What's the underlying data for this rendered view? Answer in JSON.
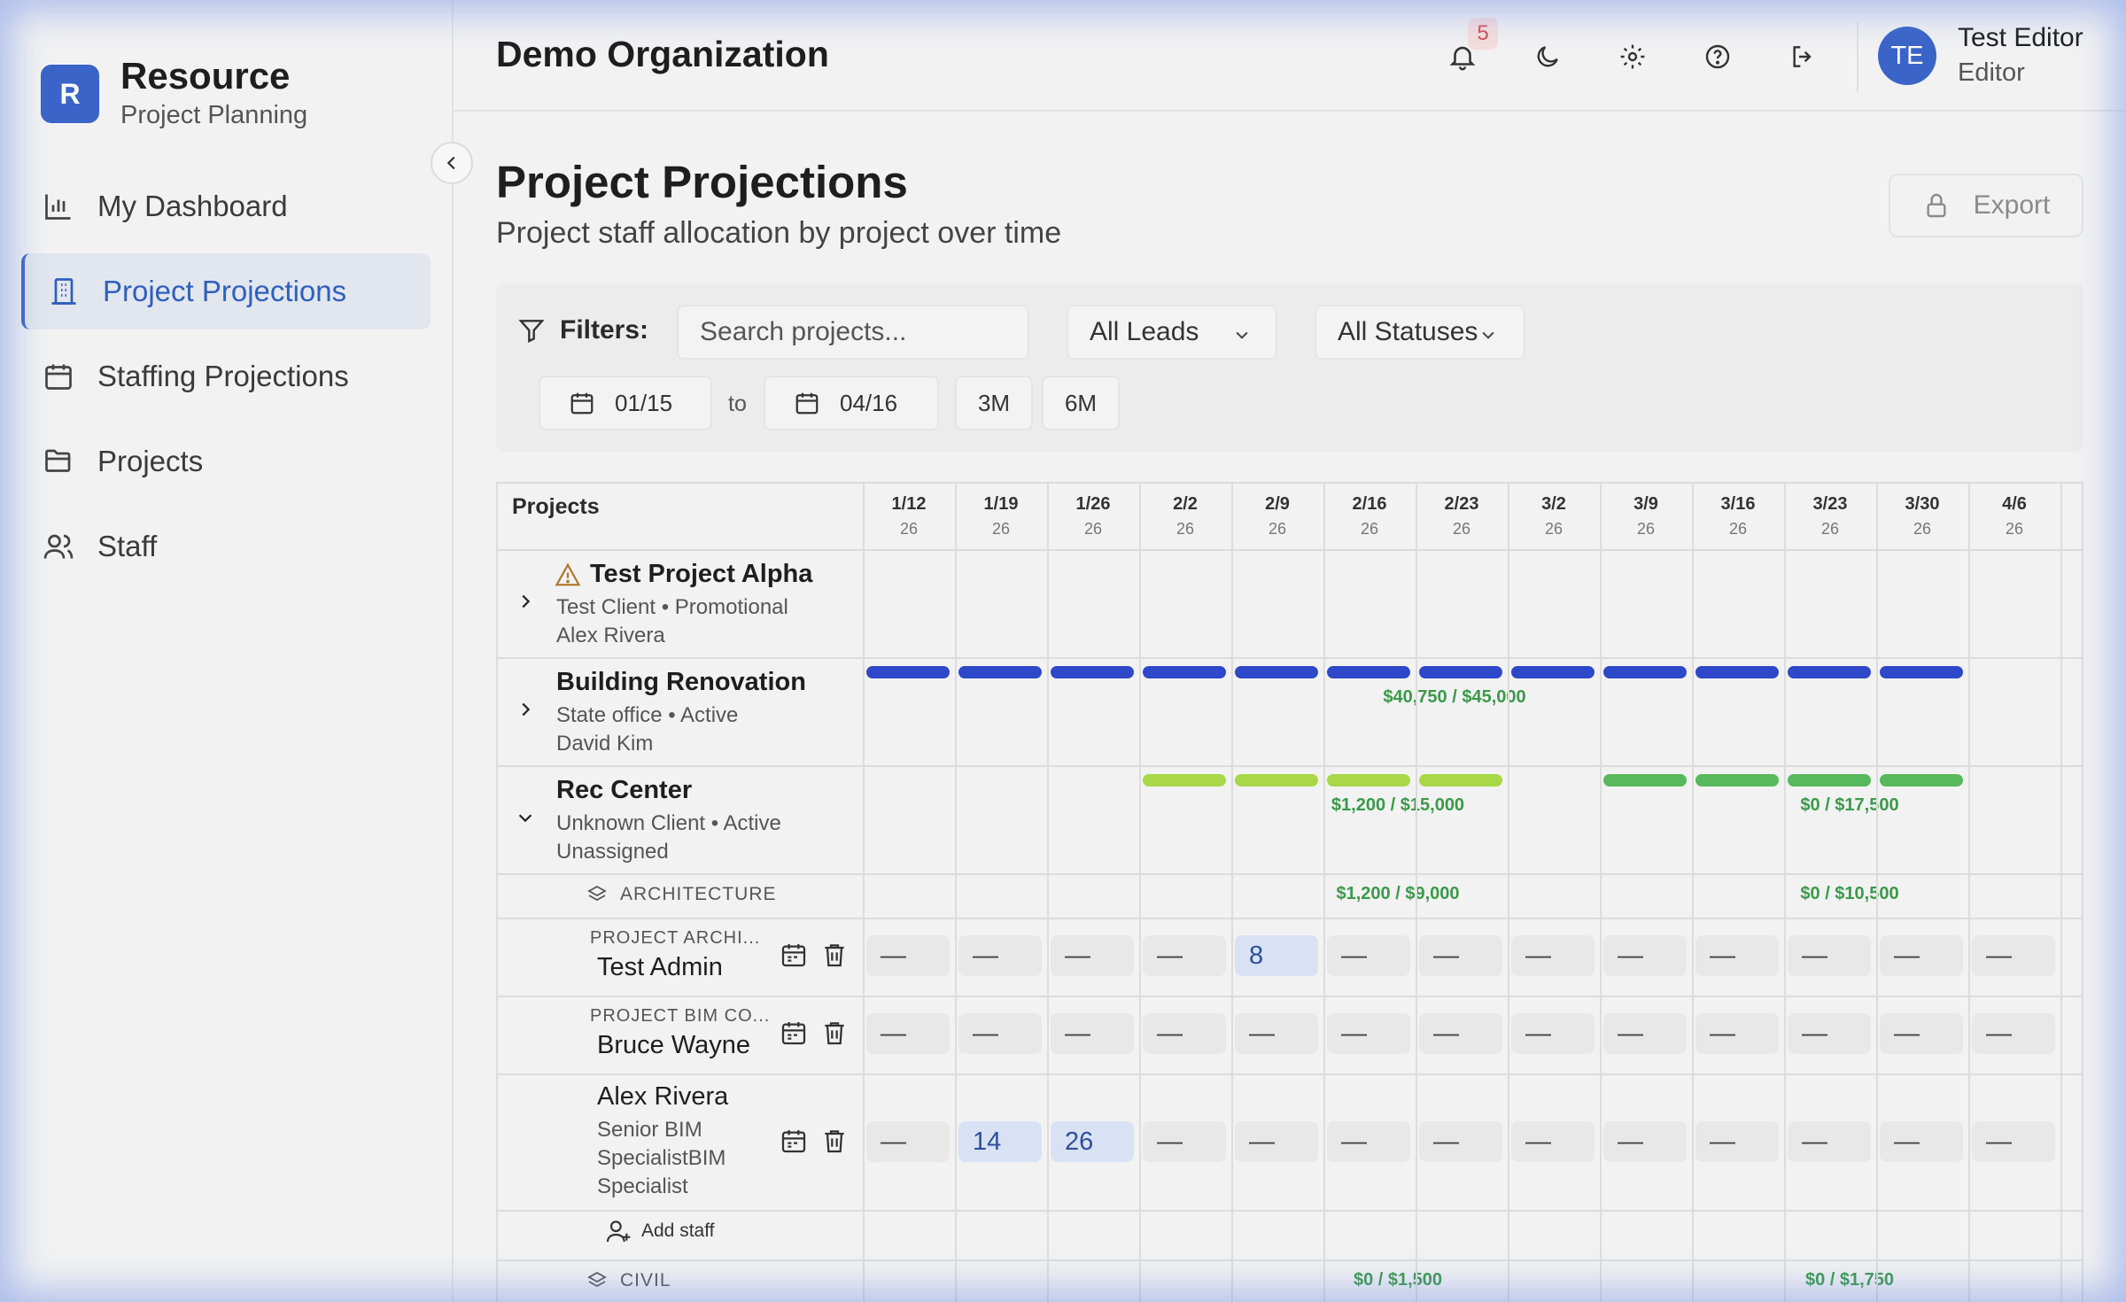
{
  "brand": {
    "logo_letter": "R",
    "title": "Resource",
    "subtitle": "Project Planning"
  },
  "nav": [
    {
      "label": "My Dashboard",
      "icon": "bar-chart-icon",
      "active": false
    },
    {
      "label": "Project Projections",
      "icon": "building-icon",
      "active": true
    },
    {
      "label": "Staffing Projections",
      "icon": "calendar-icon",
      "active": false
    },
    {
      "label": "Projects",
      "icon": "folder-icon",
      "active": false
    },
    {
      "label": "Staff",
      "icon": "users-icon",
      "active": false
    }
  ],
  "header": {
    "org": "Demo Organization",
    "notification_count": "5",
    "user": {
      "initials": "TE",
      "name": "Test Editor",
      "role": "Editor"
    }
  },
  "page": {
    "title": "Project Projections",
    "subtitle": "Project staff allocation by project over time",
    "export_label": "Export"
  },
  "filters": {
    "label": "Filters:",
    "search_placeholder": "Search projects...",
    "leads": "All Leads",
    "statuses": "All Statuses",
    "from": "01/15",
    "to_label": "to",
    "to": "04/16",
    "btn_3m": "3M",
    "btn_6m": "6M"
  },
  "grid": {
    "projects_header": "Projects",
    "weeks": [
      {
        "d": "1/12",
        "y": "26"
      },
      {
        "d": "1/19",
        "y": "26"
      },
      {
        "d": "1/26",
        "y": "26"
      },
      {
        "d": "2/2",
        "y": "26"
      },
      {
        "d": "2/9",
        "y": "26"
      },
      {
        "d": "2/16",
        "y": "26"
      },
      {
        "d": "2/23",
        "y": "26"
      },
      {
        "d": "3/2",
        "y": "26"
      },
      {
        "d": "3/9",
        "y": "26"
      },
      {
        "d": "3/16",
        "y": "26"
      },
      {
        "d": "3/23",
        "y": "26"
      },
      {
        "d": "3/30",
        "y": "26"
      },
      {
        "d": "4/6",
        "y": "26"
      }
    ],
    "projects": [
      {
        "name": "Test Project Alpha",
        "client_status": "Test Client • Promotional",
        "lead": "Alex Rivera",
        "warning": true
      },
      {
        "name": "Building Renovation",
        "client_status": "State office • Active",
        "lead": "David Kim",
        "amount": "$40,750 / $45,000"
      },
      {
        "name": "Rec Center",
        "client_status": "Unknown Client • Active",
        "lead": "Unassigned",
        "amount_1": "$1,200 / $15,000",
        "amount_2": "$0 / $17,500"
      }
    ],
    "sections": [
      {
        "label": "ARCHITECTURE",
        "amount_1": "$1,200 / $9,000",
        "amount_2": "$0 / $10,500"
      },
      {
        "label": "CIVIL",
        "amount_1": "$0 / $1,500",
        "amount_2": "$0 / $1,750"
      }
    ],
    "staff": [
      {
        "role": "PROJECT ARCHI...",
        "name": "Test Admin",
        "cells": [
          "—",
          "—",
          "—",
          "—",
          "8",
          "—",
          "—",
          "—",
          "—",
          "—",
          "—",
          "—",
          "—"
        ]
      },
      {
        "role": "PROJECT BIM CO...",
        "name": "Bruce Wayne",
        "cells": [
          "—",
          "—",
          "—",
          "—",
          "—",
          "—",
          "—",
          "—",
          "—",
          "—",
          "—",
          "—",
          "—"
        ]
      },
      {
        "role": "",
        "name": "Alex Rivera",
        "title_lines": [
          "Senior BIM",
          "SpecialistBIM",
          "Specialist"
        ],
        "cells": [
          "—",
          "14",
          "26",
          "—",
          "—",
          "—",
          "—",
          "—",
          "—",
          "—",
          "—",
          "—",
          "—"
        ]
      }
    ],
    "add_staff_label": "Add staff"
  },
  "colors": {
    "accent": "#3a64c8",
    "bar_blue": "#2d48c8",
    "bar_lime": "#a8d848",
    "bar_green": "#58b85c",
    "amount_green": "#3a9a4a"
  }
}
